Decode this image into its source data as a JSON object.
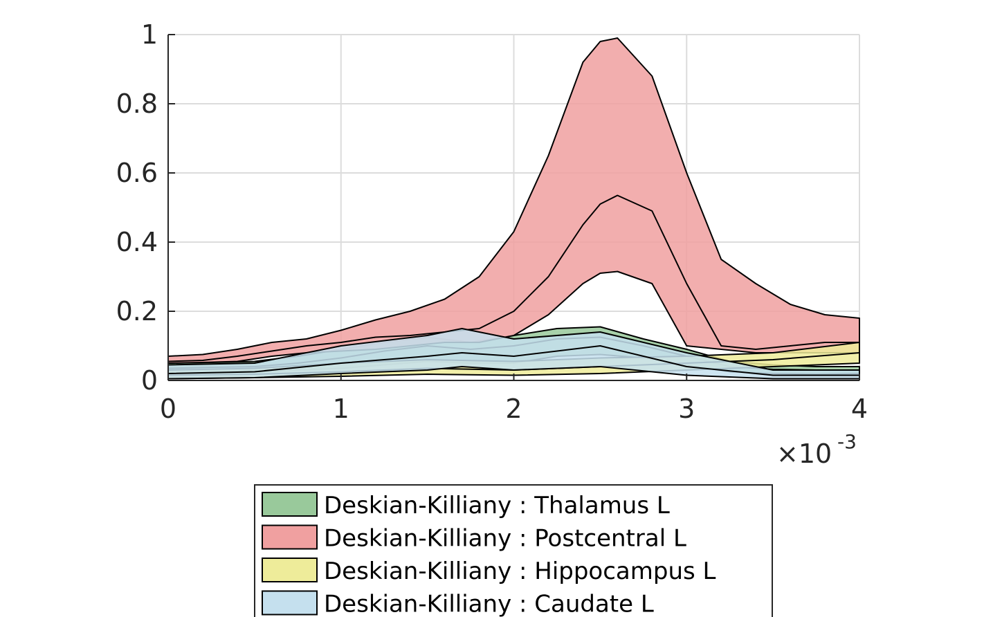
{
  "chart_data": {
    "type": "area",
    "title": "",
    "xlabel": "",
    "ylabel": "",
    "xlim": [
      0,
      0.004
    ],
    "ylim": [
      0,
      1
    ],
    "x_tick_labels": [
      "0",
      "1",
      "2",
      "3",
      "4"
    ],
    "x_tick_values": [
      0,
      0.001,
      0.002,
      0.003,
      0.004
    ],
    "y_tick_labels": [
      "0",
      "0.2",
      "0.4",
      "0.6",
      "0.8",
      "1"
    ],
    "y_tick_values": [
      0,
      0.2,
      0.4,
      0.6,
      0.8,
      1
    ],
    "x_exponent": {
      "base": "×10",
      "power": "-3"
    },
    "grid": true,
    "legend_position": "bottom",
    "series": [
      {
        "name": "Deskian-Killiany : Thalamus L",
        "color": "#99c99b",
        "x": [
          0,
          0.00025,
          0.0005,
          0.00075,
          0.001,
          0.00125,
          0.0015,
          0.00175,
          0.002,
          0.00225,
          0.0025,
          0.00275,
          0.003,
          0.00325,
          0.0035,
          0.00375,
          0.004
        ],
        "upper": [
          0.05,
          0.052,
          0.055,
          0.07,
          0.09,
          0.11,
          0.125,
          0.11,
          0.13,
          0.15,
          0.155,
          0.12,
          0.09,
          0.055,
          0.045,
          0.04,
          0.04
        ],
        "mean": [
          0.035,
          0.038,
          0.04,
          0.05,
          0.065,
          0.085,
          0.1,
          0.09,
          0.1,
          0.12,
          0.125,
          0.1,
          0.07,
          0.04,
          0.032,
          0.03,
          0.03
        ],
        "lower": [
          0.02,
          0.022,
          0.025,
          0.03,
          0.035,
          0.045,
          0.055,
          0.05,
          0.05,
          0.07,
          0.075,
          0.065,
          0.045,
          0.025,
          0.02,
          0.018,
          0.02
        ]
      },
      {
        "name": "Deskian-Killiany : Postcentral L",
        "color": "#f0a0a0",
        "x": [
          0,
          0.0002,
          0.0004,
          0.0006,
          0.0008,
          0.001,
          0.0012,
          0.0014,
          0.0016,
          0.0018,
          0.002,
          0.0022,
          0.0024,
          0.0025,
          0.0026,
          0.0028,
          0.003,
          0.0032,
          0.0034,
          0.0036,
          0.0038,
          0.004
        ],
        "upper": [
          0.07,
          0.075,
          0.09,
          0.11,
          0.12,
          0.145,
          0.175,
          0.2,
          0.235,
          0.3,
          0.43,
          0.65,
          0.92,
          0.98,
          0.99,
          0.88,
          0.6,
          0.35,
          0.28,
          0.22,
          0.19,
          0.18
        ],
        "mean": [
          0.055,
          0.058,
          0.07,
          0.085,
          0.1,
          0.11,
          0.125,
          0.13,
          0.14,
          0.15,
          0.2,
          0.3,
          0.45,
          0.51,
          0.535,
          0.49,
          0.28,
          0.1,
          0.09,
          0.1,
          0.11,
          0.11
        ],
        "lower": [
          0.05,
          0.052,
          0.055,
          0.07,
          0.08,
          0.085,
          0.09,
          0.1,
          0.11,
          0.11,
          0.13,
          0.19,
          0.28,
          0.31,
          0.315,
          0.28,
          0.1,
          0.09,
          0.08,
          0.08,
          0.08,
          0.08
        ]
      },
      {
        "name": "Deskian-Killiany : Hippocampus L",
        "color": "#eeec9a",
        "x": [
          0,
          0.0005,
          0.001,
          0.0015,
          0.002,
          0.0025,
          0.003,
          0.0035,
          0.004
        ],
        "upper": [
          0.03,
          0.035,
          0.05,
          0.06,
          0.055,
          0.065,
          0.07,
          0.08,
          0.11
        ],
        "mean": [
          0.015,
          0.018,
          0.025,
          0.035,
          0.03,
          0.04,
          0.05,
          0.06,
          0.08
        ],
        "lower": [
          0.005,
          0.008,
          0.012,
          0.018,
          0.015,
          0.02,
          0.03,
          0.04,
          0.05
        ]
      },
      {
        "name": "Deskian-Killiany : Caudate L",
        "color": "#c5e0ee",
        "x": [
          0,
          0.0005,
          0.001,
          0.0015,
          0.0017,
          0.002,
          0.0025,
          0.003,
          0.0035,
          0.004
        ],
        "upper": [
          0.045,
          0.05,
          0.1,
          0.13,
          0.15,
          0.12,
          0.14,
          0.08,
          0.03,
          0.03
        ],
        "mean": [
          0.02,
          0.025,
          0.05,
          0.07,
          0.08,
          0.07,
          0.1,
          0.04,
          0.015,
          0.015
        ],
        "lower": [
          0.005,
          0.008,
          0.02,
          0.03,
          0.04,
          0.03,
          0.04,
          0.015,
          0.005,
          0.005
        ]
      }
    ]
  }
}
